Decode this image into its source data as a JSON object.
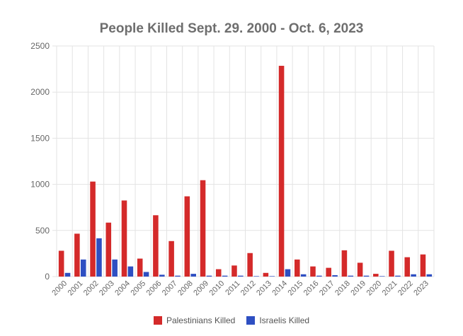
{
  "chart_data": {
    "type": "bar",
    "title": "People Killed Sept. 29. 2000 - Oct. 6, 2023",
    "xlabel": "",
    "ylabel": "",
    "ylim": [
      0,
      2500
    ],
    "yticks": [
      "0",
      "500",
      "1000",
      "1500",
      "2000",
      "2500"
    ],
    "grid": true,
    "legend_position": "bottom",
    "categories": [
      "2000",
      "2001",
      "2002",
      "2003",
      "2004",
      "2005",
      "2006",
      "2007",
      "2008",
      "2009",
      "2010",
      "2011",
      "2012",
      "2013",
      "2014",
      "2015",
      "2016",
      "2017",
      "2018",
      "2019",
      "2020",
      "2021",
      "2022",
      "2023"
    ],
    "series": [
      {
        "name": "Palestinians Killed",
        "color": "#d42a2a",
        "values": [
          280,
          465,
          1030,
          585,
          825,
          195,
          665,
          385,
          870,
          1045,
          80,
          120,
          255,
          40,
          2285,
          185,
          110,
          95,
          285,
          150,
          30,
          280,
          210,
          240
        ]
      },
      {
        "name": "Israelis Killed",
        "color": "#2e4fc2",
        "values": [
          40,
          185,
          415,
          185,
          110,
          50,
          20,
          10,
          30,
          10,
          10,
          10,
          5,
          5,
          80,
          25,
          10,
          15,
          10,
          10,
          5,
          10,
          25,
          25
        ]
      }
    ]
  }
}
